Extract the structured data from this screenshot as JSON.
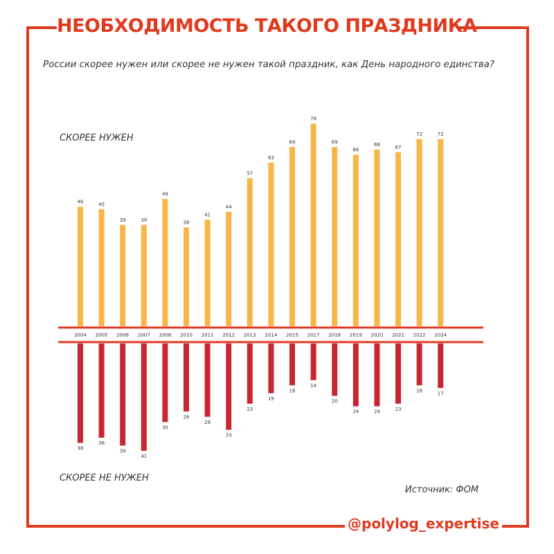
{
  "header": {
    "title": "НЕОБХОДИМОСТЬ ТАКОГО ПРАЗДНИКА",
    "subtitle": "России скорее нужен или скорее не нужен такой праздник, как День народного единства?"
  },
  "footer": {
    "source": "Источник: ФОМ",
    "handle": "@polylog_expertise"
  },
  "colors": {
    "accent": "#e03a1e",
    "positive": "#f9b545",
    "negative": "#c8262f"
  },
  "chart_data": {
    "type": "bar",
    "categories": [
      "2004",
      "2005",
      "2006",
      "2007",
      "2008",
      "2010",
      "2011",
      "2012",
      "2013",
      "2014",
      "2015",
      "2017",
      "2018",
      "2019",
      "2020",
      "2021",
      "2022",
      "2024"
    ],
    "series": [
      {
        "name": "СКОРЕЕ НУЖЕН",
        "values": [
          46,
          45,
          39,
          39,
          49,
          38,
          41,
          44,
          57,
          63,
          69,
          78,
          69,
          66,
          68,
          67,
          72,
          72
        ]
      },
      {
        "name": "СКОРЕЕ НЕ НУЖЕН",
        "values": [
          38,
          36,
          39,
          41,
          30,
          26,
          28,
          33,
          23,
          19,
          16,
          14,
          20,
          24,
          24,
          23,
          16,
          17
        ]
      }
    ],
    "title": "НЕОБХОДИМОСТЬ ТАКОГО ПРАЗДНИКА",
    "legend_placement": "left, above and below axis"
  }
}
